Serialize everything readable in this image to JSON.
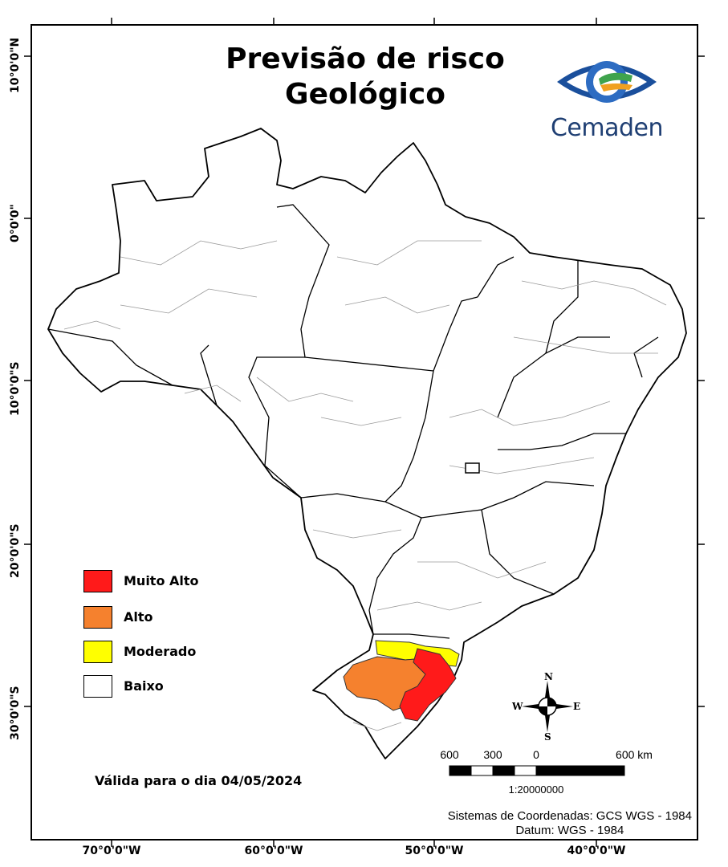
{
  "title": "Previsão de risco Geológico",
  "logo": {
    "text": "Cemaden"
  },
  "legend": {
    "items": [
      {
        "label": "Muito Alto",
        "color": "#ff1a1a"
      },
      {
        "label": "Alto",
        "color": "#f5812e"
      },
      {
        "label": "Moderado",
        "color": "#ffff00"
      },
      {
        "label": "Baixo",
        "color": "#ffffff"
      }
    ]
  },
  "validity": "Válida para o dia 04/05/2024",
  "coordinate_system": {
    "line1": "Sistemas de Coordenadas: GCS WGS - 1984",
    "line2": "Datum: WGS - 1984"
  },
  "scale_bar": {
    "labels": [
      "600",
      "300",
      "0",
      "600 km"
    ],
    "ratio": "1:20000000"
  },
  "compass": {
    "north": "N",
    "south": "S",
    "east": "E",
    "west": "W"
  },
  "graticule": {
    "latitudes": [
      "10°0'0\"N",
      "0°0'0\"",
      "10°0'0\"S",
      "20°0'0\"S",
      "30°0'0\"S"
    ],
    "longitudes": [
      "70°0'0\"W",
      "60°0'0\"W",
      "50°0'0\"W",
      "40°0'0\"W"
    ]
  },
  "risk_regions": [
    {
      "region": "Rio Grande do Sul central / serra",
      "level": "Muito Alto"
    },
    {
      "region": "Rio Grande do Sul west-central",
      "level": "Alto"
    },
    {
      "region": "Santa Catarina south / west",
      "level": "Moderado"
    }
  ]
}
